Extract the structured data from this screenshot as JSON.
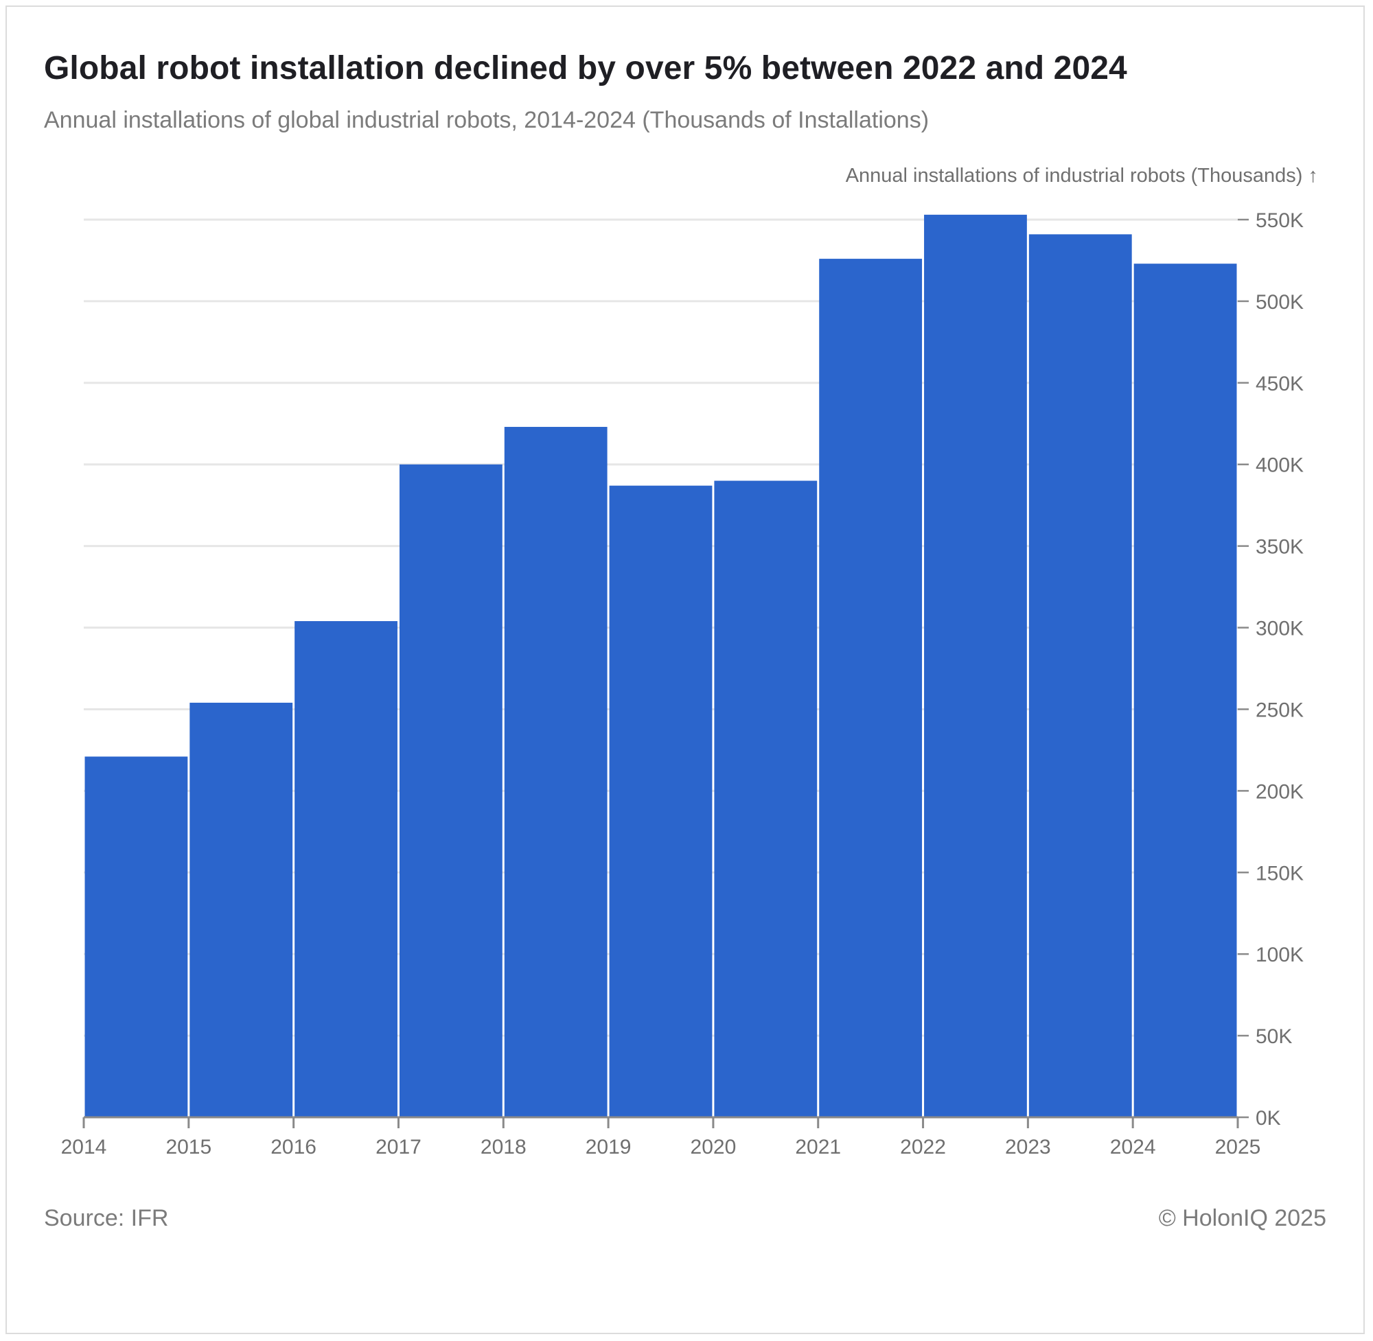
{
  "header": {
    "title": "Global robot installation declined by over 5% between 2022 and 2024",
    "subtitle": "Annual installations of global industrial robots, 2014-2024 (Thousands of Installations)"
  },
  "footer": {
    "source": "Source: IFR",
    "copyright": "© HolonIQ 2025"
  },
  "colors": {
    "bar": "#2b65cc",
    "grid": "#e6e6e6",
    "axis": "#8a8a8a",
    "tick_text": "#6f6f6f"
  },
  "chart_data": {
    "type": "bar",
    "title": "Global robot installation declined by over 5% between 2022 and 2024",
    "ylabel": "Annual installations of industrial robots (Thousands) ↑",
    "xlabel": "",
    "categories": [
      "2014",
      "2015",
      "2016",
      "2017",
      "2018",
      "2019",
      "2020",
      "2021",
      "2022",
      "2023",
      "2024"
    ],
    "values": [
      221,
      254,
      304,
      400,
      423,
      387,
      390,
      526,
      553,
      541,
      523
    ],
    "x_ticks": [
      "2014",
      "2015",
      "2016",
      "2017",
      "2018",
      "2019",
      "2020",
      "2021",
      "2022",
      "2023",
      "2024",
      "2025"
    ],
    "y_ticks": [
      0,
      50,
      100,
      150,
      200,
      250,
      300,
      350,
      400,
      450,
      500,
      550
    ],
    "y_tick_labels": [
      "0K",
      "50K",
      "100K",
      "150K",
      "200K",
      "250K",
      "300K",
      "350K",
      "400K",
      "450K",
      "500K",
      "550K"
    ],
    "ylim": [
      0,
      550
    ],
    "grid": true,
    "y_axis_side": "right"
  }
}
